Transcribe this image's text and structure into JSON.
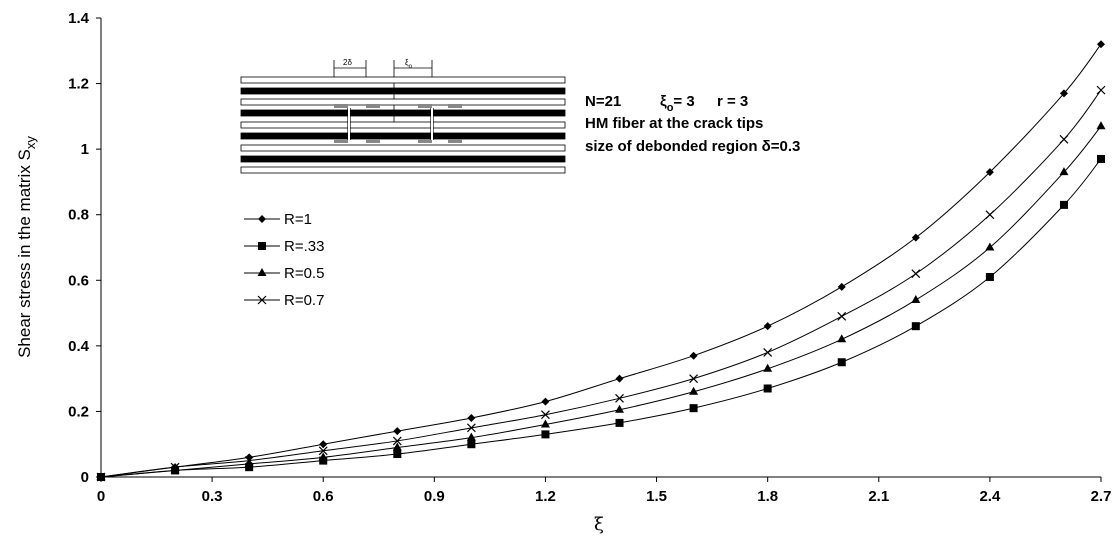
{
  "chart_data": {
    "type": "line",
    "title": "",
    "xlabel": "ξ",
    "ylabel": "Shear stress in the matrix S",
    "ylabel_subscript": "xy",
    "xlim": [
      0,
      2.7
    ],
    "ylim": [
      0,
      1.4
    ],
    "x_ticks": [
      "0",
      "0.3",
      "0.6",
      "0.9",
      "1.2",
      "1.5",
      "1.8",
      "2.1",
      "2.4",
      "2.7"
    ],
    "x_tick_values": [
      0,
      0.3,
      0.6,
      0.9,
      1.2,
      1.5,
      1.8,
      2.1,
      2.4,
      2.7
    ],
    "y_ticks": [
      "0",
      "0.2",
      "0.4",
      "0.6",
      "0.8",
      "1",
      "1.2",
      "1.4"
    ],
    "y_tick_values": [
      0,
      0.2,
      0.4,
      0.6,
      0.8,
      1.0,
      1.2,
      1.4
    ],
    "grid": false,
    "legend_position": "left",
    "series": [
      {
        "name": "R=1",
        "marker": "diamond",
        "x": [
          0,
          0.2,
          0.4,
          0.6,
          0.8,
          1.0,
          1.2,
          1.4,
          1.6,
          1.8,
          2.0,
          2.2,
          2.4,
          2.6,
          2.7
        ],
        "values": [
          0,
          0.03,
          0.06,
          0.1,
          0.14,
          0.18,
          0.23,
          0.3,
          0.37,
          0.46,
          0.58,
          0.73,
          0.93,
          1.17,
          1.32
        ]
      },
      {
        "name": "R=.33",
        "marker": "square",
        "x": [
          0,
          0.2,
          0.4,
          0.6,
          0.8,
          1.0,
          1.2,
          1.4,
          1.6,
          1.8,
          2.0,
          2.2,
          2.4,
          2.6,
          2.7
        ],
        "values": [
          0,
          0.02,
          0.03,
          0.05,
          0.07,
          0.1,
          0.13,
          0.165,
          0.21,
          0.27,
          0.35,
          0.46,
          0.61,
          0.83,
          0.97
        ]
      },
      {
        "name": "R=0.5",
        "marker": "triangle",
        "x": [
          0,
          0.2,
          0.4,
          0.6,
          0.8,
          1.0,
          1.2,
          1.4,
          1.6,
          1.8,
          2.0,
          2.2,
          2.4,
          2.6,
          2.7
        ],
        "values": [
          0,
          0.02,
          0.04,
          0.06,
          0.09,
          0.12,
          0.16,
          0.205,
          0.26,
          0.33,
          0.42,
          0.54,
          0.7,
          0.93,
          1.07
        ]
      },
      {
        "name": "R=0.7",
        "marker": "x",
        "x": [
          0,
          0.2,
          0.4,
          0.6,
          0.8,
          1.0,
          1.2,
          1.4,
          1.6,
          1.8,
          2.0,
          2.2,
          2.4,
          2.6,
          2.7
        ],
        "values": [
          0,
          0.03,
          0.05,
          0.08,
          0.11,
          0.15,
          0.19,
          0.24,
          0.3,
          0.38,
          0.49,
          0.62,
          0.8,
          1.03,
          1.18
        ]
      }
    ],
    "annotations": {
      "line1_n": "N=21",
      "line1_xi": "ξ",
      "line1_xi_sub": "o",
      "line1_xi_val": "= 3",
      "line1_r": "r = 3",
      "line2": "HM fiber at the crack tips",
      "line3": "size of debonded region δ=0.3"
    },
    "inset": {
      "dim1": "2δ",
      "dim2": "ξ",
      "dim2_sub": "o"
    }
  }
}
